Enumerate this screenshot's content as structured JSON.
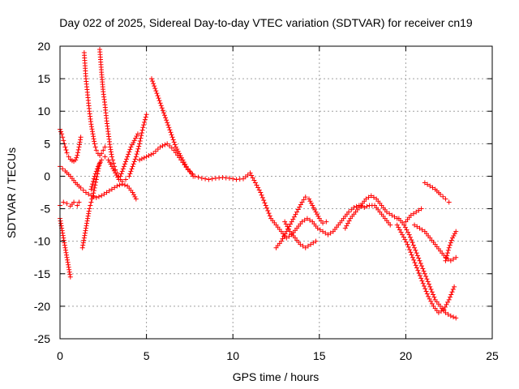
{
  "chart_data": {
    "type": "scatter",
    "title": "Day 022 of 2025, Sidereal Day-to-day VTEC variation (SDTVAR) for receiver cn19",
    "xlabel": "GPS time / hours",
    "ylabel": "SDTVAR / TECUs",
    "xlim": [
      0,
      25
    ],
    "ylim": [
      -25,
      20
    ],
    "xticks": [
      "0",
      "5",
      "10",
      "15",
      "20",
      "25"
    ],
    "yticks": [
      "20",
      "15",
      "10",
      "5",
      "0",
      "-5",
      "-10",
      "-15",
      "-20",
      "-25"
    ],
    "grid": true,
    "marker": "+",
    "color": "#ff0000",
    "series": [
      {
        "name": "arc-1",
        "x": [
          0.0,
          0.1,
          0.2,
          0.3,
          0.4,
          0.5,
          0.6,
          0.7,
          0.8,
          0.9,
          1.0,
          1.1,
          1.2
        ],
        "y": [
          7.2,
          6.5,
          5.5,
          4.5,
          3.6,
          3.0,
          2.6,
          2.4,
          2.3,
          2.5,
          3.2,
          4.5,
          6.0
        ]
      },
      {
        "name": "arc-2",
        "x": [
          0.0,
          0.1,
          0.2,
          0.3,
          0.4,
          0.5,
          0.6
        ],
        "y": [
          -6.5,
          -8.0,
          -9.5,
          -11.0,
          -12.5,
          -14.0,
          -15.5
        ]
      },
      {
        "name": "arc-3",
        "x": [
          0.0,
          0.3,
          0.6,
          0.9,
          1.2,
          1.5,
          1.8,
          2.1,
          2.4,
          2.7,
          3.0,
          3.3,
          3.6,
          3.9,
          4.2,
          4.4
        ],
        "y": [
          1.5,
          0.8,
          0.0,
          -1.0,
          -1.8,
          -2.5,
          -3.0,
          -3.3,
          -3.0,
          -2.5,
          -2.0,
          -1.5,
          -1.2,
          -1.5,
          -2.5,
          -3.5
        ]
      },
      {
        "name": "arc-4",
        "x": [
          0.0,
          0.2,
          0.4,
          0.6,
          0.8,
          1.0,
          1.1
        ],
        "y": [
          -4.5,
          -4.0,
          -4.2,
          -4.6,
          -4.0,
          -4.5,
          -4.0
        ]
      },
      {
        "name": "arc-5",
        "x": [
          1.3,
          1.4,
          1.5,
          1.6,
          1.7,
          1.8,
          1.9,
          2.0,
          2.1,
          2.2,
          2.3
        ],
        "y": [
          -11.0,
          -9.5,
          -8.0,
          -6.5,
          -5.0,
          -4.0,
          -3.0,
          -1.8,
          -0.5,
          0.8,
          2.0
        ]
      },
      {
        "name": "arc-6",
        "x": [
          1.4,
          1.5,
          1.6,
          1.7,
          1.8,
          1.9,
          2.0,
          2.1,
          2.2,
          2.3,
          2.4,
          2.5,
          2.6
        ],
        "y": [
          19.0,
          15.0,
          12.5,
          10.0,
          8.0,
          6.5,
          5.0,
          4.0,
          3.5,
          3.2,
          3.5,
          4.0,
          4.5
        ]
      },
      {
        "name": "arc-7",
        "x": [
          2.3,
          2.4,
          2.5,
          2.6,
          2.7,
          2.8,
          2.9,
          3.0,
          3.1,
          3.2,
          3.3,
          3.4,
          3.5
        ],
        "y": [
          19.5,
          16.0,
          13.0,
          11.0,
          8.5,
          6.5,
          4.5,
          3.0,
          2.0,
          1.0,
          0.5,
          0.0,
          -0.5
        ]
      },
      {
        "name": "arc-8",
        "x": [
          1.8,
          2.0,
          2.2,
          2.4,
          2.6,
          2.8,
          3.0,
          3.2,
          3.4,
          3.6,
          3.8,
          4.0,
          4.2,
          4.4,
          4.6,
          4.8,
          5.0
        ],
        "y": [
          -2.0,
          0.0,
          1.5,
          2.5,
          3.0,
          2.5,
          1.5,
          0.5,
          -0.5,
          -0.8,
          -0.5,
          0.0,
          1.5,
          3.0,
          5.0,
          7.5,
          9.5
        ]
      },
      {
        "name": "arc-9",
        "x": [
          3.5,
          3.7,
          3.9,
          4.1,
          4.3,
          4.5
        ],
        "y": [
          0.0,
          1.5,
          3.0,
          4.5,
          5.5,
          6.5
        ]
      },
      {
        "name": "arc-10",
        "x": [
          5.3,
          5.5,
          5.7,
          5.9,
          6.1,
          6.3,
          6.5,
          6.7,
          6.9,
          7.1,
          7.3,
          7.5,
          7.7
        ],
        "y": [
          15.0,
          13.5,
          12.0,
          10.5,
          9.0,
          7.5,
          6.0,
          4.5,
          3.5,
          2.5,
          1.5,
          0.8,
          0.0
        ]
      },
      {
        "name": "arc-11",
        "x": [
          4.6,
          5.0,
          5.4,
          5.8,
          6.2,
          6.6,
          7.0,
          7.4,
          7.8,
          8.2,
          8.6,
          9.0,
          9.4,
          9.8,
          10.2,
          10.6,
          11.0,
          11.3,
          11.6,
          11.9,
          12.2,
          12.5,
          12.8,
          13.1,
          13.4,
          13.7,
          14.0,
          14.3,
          14.6,
          14.9,
          15.2,
          15.5,
          15.8,
          16.1,
          16.4,
          16.7,
          17.0,
          17.3,
          17.6,
          17.9,
          18.2,
          18.5,
          18.8,
          19.1
        ],
        "y": [
          2.5,
          3.0,
          3.5,
          4.5,
          5.0,
          4.0,
          2.5,
          1.0,
          0.0,
          -0.3,
          -0.5,
          -0.3,
          -0.2,
          -0.3,
          -0.5,
          -0.4,
          0.5,
          -1.0,
          -2.5,
          -4.5,
          -6.5,
          -7.5,
          -8.5,
          -9.5,
          -9.0,
          -8.0,
          -7.0,
          -6.5,
          -7.0,
          -8.0,
          -8.5,
          -9.0,
          -8.5,
          -7.5,
          -6.5,
          -5.5,
          -4.8,
          -4.5,
          -4.8,
          -4.5,
          -4.5,
          -5.5,
          -6.5,
          -7.5
        ]
      },
      {
        "name": "arc-12",
        "x": [
          12.5,
          12.8,
          13.1,
          13.4,
          13.7,
          14.0,
          14.2,
          14.4,
          14.6,
          14.8,
          15.0,
          15.2,
          15.4
        ],
        "y": [
          -11.0,
          -10.0,
          -8.5,
          -7.0,
          -5.5,
          -4.0,
          -3.2,
          -3.5,
          -4.5,
          -5.5,
          -6.5,
          -7.2,
          -7.0
        ]
      },
      {
        "name": "arc-13",
        "x": [
          13.0,
          13.3,
          13.6,
          13.9,
          14.2,
          14.5,
          14.8
        ],
        "y": [
          -7.0,
          -8.5,
          -9.5,
          -10.5,
          -11.0,
          -10.5,
          -10.0
        ]
      },
      {
        "name": "arc-14",
        "x": [
          16.5,
          16.8,
          17.1,
          17.4,
          17.7,
          18.0,
          18.3,
          18.6,
          18.9,
          19.2,
          19.5
        ],
        "y": [
          -8.0,
          -6.5,
          -5.5,
          -4.5,
          -3.5,
          -3.0,
          -3.5,
          -4.5,
          -5.5,
          -6.0,
          -6.5
        ]
      },
      {
        "name": "arc-15",
        "x": [
          19.5,
          19.8,
          20.1,
          20.4,
          20.7,
          21.0,
          21.3,
          21.6,
          21.9,
          22.2,
          22.5,
          22.8
        ],
        "y": [
          -7.5,
          -9.0,
          -10.5,
          -12.5,
          -14.5,
          -16.5,
          -18.5,
          -20.0,
          -21.0,
          -20.5,
          -19.0,
          -17.0
        ]
      },
      {
        "name": "arc-16",
        "x": [
          19.6,
          19.9,
          20.2,
          20.5,
          20.8,
          21.1,
          21.4,
          21.7,
          22.0,
          22.3,
          22.6,
          22.9
        ],
        "y": [
          -6.5,
          -7.5,
          -9.0,
          -11.0,
          -13.0,
          -15.0,
          -17.0,
          -19.0,
          -20.0,
          -21.0,
          -21.5,
          -21.8
        ]
      },
      {
        "name": "arc-17",
        "x": [
          20.0,
          20.3,
          20.6,
          20.9
        ],
        "y": [
          -7.0,
          -6.0,
          -5.5,
          -5.0
        ]
      },
      {
        "name": "arc-18",
        "x": [
          20.5,
          20.8,
          21.1,
          21.4,
          21.7,
          22.0,
          22.3,
          22.6,
          22.9
        ],
        "y": [
          -7.5,
          -8.0,
          -8.5,
          -9.5,
          -10.5,
          -11.5,
          -12.5,
          -13.0,
          -12.5
        ]
      },
      {
        "name": "arc-19",
        "x": [
          22.3,
          22.5,
          22.7,
          22.9
        ],
        "y": [
          -13.0,
          -11.0,
          -9.5,
          -8.5
        ]
      },
      {
        "name": "arc-20",
        "x": [
          21.1,
          21.4,
          21.7,
          22.0,
          22.3,
          22.5
        ],
        "y": [
          -1.0,
          -1.5,
          -2.0,
          -2.8,
          -3.5,
          -4.0
        ]
      }
    ]
  }
}
